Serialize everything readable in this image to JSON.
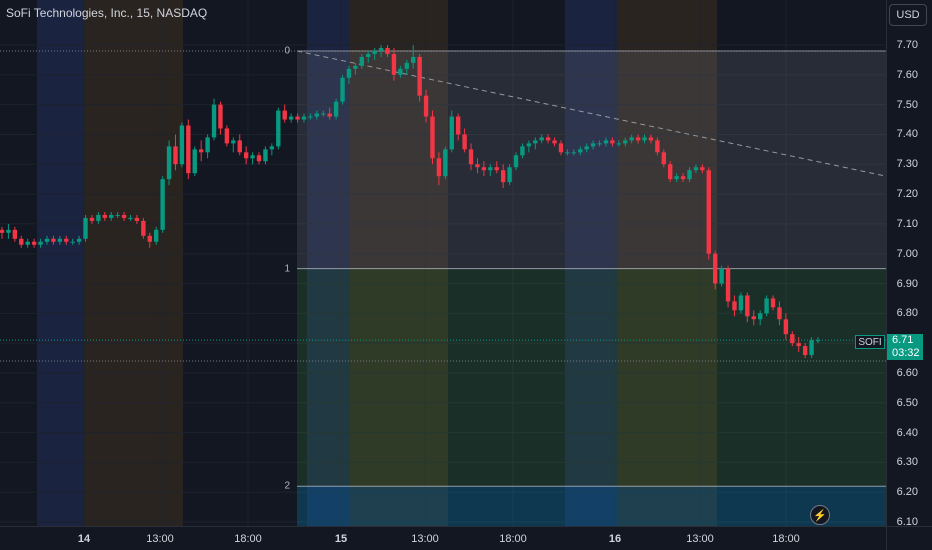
{
  "header": {
    "title": "SoFi Technologies, Inc., 15, NASDAQ",
    "currency": "USD"
  },
  "colors": {
    "background": "#131722",
    "up": "#089981",
    "down": "#f23645",
    "grid": "#1e222d",
    "session_blue": "#1a2340",
    "session_brown": "#2a2420"
  },
  "price_axis": {
    "labels": [
      "7.70",
      "7.60",
      "7.50",
      "7.40",
      "7.30",
      "7.20",
      "7.10",
      "7.00",
      "6.90",
      "6.80",
      "6.70",
      "6.60",
      "6.50",
      "6.40",
      "6.30",
      "6.20",
      "6.10"
    ],
    "last_price": "6.71",
    "countdown": "03:32",
    "symbol_tag": "SOFI"
  },
  "time_axis": {
    "labels": [
      {
        "text": "14",
        "day": true
      },
      {
        "text": "13:00",
        "day": false
      },
      {
        "text": "18:00",
        "day": false
      },
      {
        "text": "15",
        "day": true
      },
      {
        "text": "13:00",
        "day": false
      },
      {
        "text": "18:00",
        "day": false
      },
      {
        "text": "16",
        "day": true
      },
      {
        "text": "13:00",
        "day": false
      },
      {
        "text": "18:00",
        "day": false
      }
    ]
  },
  "fib": {
    "levels": [
      {
        "label": "0",
        "price": 7.68
      },
      {
        "label": "1",
        "price": 6.95
      },
      {
        "label": "2",
        "price": 6.22
      }
    ]
  },
  "chart_data": {
    "type": "candlestick",
    "interval": "15",
    "ylim": [
      6.08,
      7.72
    ],
    "candles": [
      {
        "o": 7.08,
        "h": 7.09,
        "l": 7.05,
        "c": 7.07
      },
      {
        "o": 7.07,
        "h": 7.1,
        "l": 7.05,
        "c": 7.08
      },
      {
        "o": 7.08,
        "h": 7.09,
        "l": 7.04,
        "c": 7.05
      },
      {
        "o": 7.05,
        "h": 7.06,
        "l": 7.02,
        "c": 7.03
      },
      {
        "o": 7.03,
        "h": 7.05,
        "l": 7.02,
        "c": 7.04
      },
      {
        "o": 7.04,
        "h": 7.05,
        "l": 7.02,
        "c": 7.03
      },
      {
        "o": 7.03,
        "h": 7.05,
        "l": 7.02,
        "c": 7.04
      },
      {
        "o": 7.04,
        "h": 7.06,
        "l": 7.03,
        "c": 7.05
      },
      {
        "o": 7.05,
        "h": 7.06,
        "l": 7.03,
        "c": 7.04
      },
      {
        "o": 7.04,
        "h": 7.06,
        "l": 7.03,
        "c": 7.05
      },
      {
        "o": 7.05,
        "h": 7.06,
        "l": 7.03,
        "c": 7.04
      },
      {
        "o": 7.04,
        "h": 7.05,
        "l": 7.03,
        "c": 7.04
      },
      {
        "o": 7.04,
        "h": 7.06,
        "l": 7.03,
        "c": 7.05
      },
      {
        "o": 7.05,
        "h": 7.13,
        "l": 7.04,
        "c": 7.12
      },
      {
        "o": 7.12,
        "h": 7.13,
        "l": 7.1,
        "c": 7.11
      },
      {
        "o": 7.11,
        "h": 7.14,
        "l": 7.1,
        "c": 7.13
      },
      {
        "o": 7.13,
        "h": 7.14,
        "l": 7.11,
        "c": 7.12
      },
      {
        "o": 7.12,
        "h": 7.14,
        "l": 7.11,
        "c": 7.13
      },
      {
        "o": 7.13,
        "h": 7.14,
        "l": 7.12,
        "c": 7.13
      },
      {
        "o": 7.13,
        "h": 7.14,
        "l": 7.11,
        "c": 7.12
      },
      {
        "o": 7.12,
        "h": 7.13,
        "l": 7.11,
        "c": 7.12
      },
      {
        "o": 7.12,
        "h": 7.13,
        "l": 7.1,
        "c": 7.11
      },
      {
        "o": 7.11,
        "h": 7.12,
        "l": 7.05,
        "c": 7.06
      },
      {
        "o": 7.06,
        "h": 7.07,
        "l": 7.02,
        "c": 7.04
      },
      {
        "o": 7.04,
        "h": 7.09,
        "l": 7.03,
        "c": 7.08
      },
      {
        "o": 7.08,
        "h": 7.26,
        "l": 7.07,
        "c": 7.25
      },
      {
        "o": 7.25,
        "h": 7.38,
        "l": 7.23,
        "c": 7.36
      },
      {
        "o": 7.36,
        "h": 7.4,
        "l": 7.28,
        "c": 7.3
      },
      {
        "o": 7.3,
        "h": 7.44,
        "l": 7.29,
        "c": 7.43
      },
      {
        "o": 7.43,
        "h": 7.45,
        "l": 7.25,
        "c": 7.27
      },
      {
        "o": 7.27,
        "h": 7.36,
        "l": 7.26,
        "c": 7.35
      },
      {
        "o": 7.35,
        "h": 7.38,
        "l": 7.31,
        "c": 7.34
      },
      {
        "o": 7.34,
        "h": 7.4,
        "l": 7.32,
        "c": 7.39
      },
      {
        "o": 7.39,
        "h": 7.52,
        "l": 7.38,
        "c": 7.5
      },
      {
        "o": 7.5,
        "h": 7.51,
        "l": 7.4,
        "c": 7.42
      },
      {
        "o": 7.42,
        "h": 7.43,
        "l": 7.36,
        "c": 7.37
      },
      {
        "o": 7.37,
        "h": 7.39,
        "l": 7.34,
        "c": 7.38
      },
      {
        "o": 7.38,
        "h": 7.4,
        "l": 7.33,
        "c": 7.34
      },
      {
        "o": 7.34,
        "h": 7.36,
        "l": 7.3,
        "c": 7.32
      },
      {
        "o": 7.32,
        "h": 7.34,
        "l": 7.3,
        "c": 7.33
      },
      {
        "o": 7.33,
        "h": 7.34,
        "l": 7.3,
        "c": 7.31
      },
      {
        "o": 7.31,
        "h": 7.36,
        "l": 7.3,
        "c": 7.35
      },
      {
        "o": 7.35,
        "h": 7.37,
        "l": 7.33,
        "c": 7.36
      },
      {
        "o": 7.36,
        "h": 7.49,
        "l": 7.35,
        "c": 7.48
      },
      {
        "o": 7.48,
        "h": 7.5,
        "l": 7.44,
        "c": 7.45
      },
      {
        "o": 7.45,
        "h": 7.47,
        "l": 7.44,
        "c": 7.46
      },
      {
        "o": 7.46,
        "h": 7.47,
        "l": 7.44,
        "c": 7.45
      },
      {
        "o": 7.45,
        "h": 7.47,
        "l": 7.44,
        "c": 7.46
      },
      {
        "o": 7.46,
        "h": 7.47,
        "l": 7.45,
        "c": 7.46
      },
      {
        "o": 7.46,
        "h": 7.48,
        "l": 7.45,
        "c": 7.47
      },
      {
        "o": 7.47,
        "h": 7.48,
        "l": 7.46,
        "c": 7.47
      },
      {
        "o": 7.47,
        "h": 7.49,
        "l": 7.45,
        "c": 7.46
      },
      {
        "o": 7.46,
        "h": 7.52,
        "l": 7.45,
        "c": 7.51
      },
      {
        "o": 7.51,
        "h": 7.6,
        "l": 7.5,
        "c": 7.59
      },
      {
        "o": 7.59,
        "h": 7.63,
        "l": 7.57,
        "c": 7.62
      },
      {
        "o": 7.62,
        "h": 7.64,
        "l": 7.6,
        "c": 7.63
      },
      {
        "o": 7.63,
        "h": 7.67,
        "l": 7.62,
        "c": 7.66
      },
      {
        "o": 7.66,
        "h": 7.68,
        "l": 7.64,
        "c": 7.67
      },
      {
        "o": 7.67,
        "h": 7.69,
        "l": 7.65,
        "c": 7.68
      },
      {
        "o": 7.68,
        "h": 7.7,
        "l": 7.66,
        "c": 7.69
      },
      {
        "o": 7.69,
        "h": 7.7,
        "l": 7.66,
        "c": 7.67
      },
      {
        "o": 7.67,
        "h": 7.69,
        "l": 7.58,
        "c": 7.6
      },
      {
        "o": 7.6,
        "h": 7.63,
        "l": 7.59,
        "c": 7.62
      },
      {
        "o": 7.62,
        "h": 7.65,
        "l": 7.6,
        "c": 7.64
      },
      {
        "o": 7.64,
        "h": 7.7,
        "l": 7.62,
        "c": 7.66
      },
      {
        "o": 7.66,
        "h": 7.67,
        "l": 7.51,
        "c": 7.53
      },
      {
        "o": 7.53,
        "h": 7.55,
        "l": 7.44,
        "c": 7.46
      },
      {
        "o": 7.46,
        "h": 7.48,
        "l": 7.3,
        "c": 7.32
      },
      {
        "o": 7.32,
        "h": 7.34,
        "l": 7.23,
        "c": 7.26
      },
      {
        "o": 7.26,
        "h": 7.36,
        "l": 7.25,
        "c": 7.35
      },
      {
        "o": 7.35,
        "h": 7.48,
        "l": 7.34,
        "c": 7.46
      },
      {
        "o": 7.46,
        "h": 7.47,
        "l": 7.38,
        "c": 7.4
      },
      {
        "o": 7.4,
        "h": 7.42,
        "l": 7.34,
        "c": 7.35
      },
      {
        "o": 7.35,
        "h": 7.37,
        "l": 7.28,
        "c": 7.3
      },
      {
        "o": 7.3,
        "h": 7.32,
        "l": 7.27,
        "c": 7.29
      },
      {
        "o": 7.29,
        "h": 7.31,
        "l": 7.26,
        "c": 7.28
      },
      {
        "o": 7.28,
        "h": 7.3,
        "l": 7.26,
        "c": 7.29
      },
      {
        "o": 7.29,
        "h": 7.31,
        "l": 7.27,
        "c": 7.28
      },
      {
        "o": 7.28,
        "h": 7.3,
        "l": 7.22,
        "c": 7.24
      },
      {
        "o": 7.24,
        "h": 7.3,
        "l": 7.23,
        "c": 7.29
      },
      {
        "o": 7.29,
        "h": 7.34,
        "l": 7.28,
        "c": 7.33
      },
      {
        "o": 7.33,
        "h": 7.37,
        "l": 7.32,
        "c": 7.36
      },
      {
        "o": 7.36,
        "h": 7.38,
        "l": 7.34,
        "c": 7.37
      },
      {
        "o": 7.37,
        "h": 7.39,
        "l": 7.35,
        "c": 7.38
      },
      {
        "o": 7.38,
        "h": 7.4,
        "l": 7.37,
        "c": 7.39
      },
      {
        "o": 7.39,
        "h": 7.4,
        "l": 7.37,
        "c": 7.38
      },
      {
        "o": 7.38,
        "h": 7.39,
        "l": 7.36,
        "c": 7.37
      },
      {
        "o": 7.37,
        "h": 7.38,
        "l": 7.33,
        "c": 7.34
      },
      {
        "o": 7.34,
        "h": 7.35,
        "l": 7.33,
        "c": 7.34
      },
      {
        "o": 7.34,
        "h": 7.35,
        "l": 7.33,
        "c": 7.34
      },
      {
        "o": 7.34,
        "h": 7.36,
        "l": 7.33,
        "c": 7.35
      },
      {
        "o": 7.35,
        "h": 7.37,
        "l": 7.34,
        "c": 7.36
      },
      {
        "o": 7.36,
        "h": 7.38,
        "l": 7.35,
        "c": 7.37
      },
      {
        "o": 7.37,
        "h": 7.38,
        "l": 7.36,
        "c": 7.37
      },
      {
        "o": 7.37,
        "h": 7.39,
        "l": 7.36,
        "c": 7.38
      },
      {
        "o": 7.38,
        "h": 7.39,
        "l": 7.36,
        "c": 7.37
      },
      {
        "o": 7.37,
        "h": 7.38,
        "l": 7.36,
        "c": 7.37
      },
      {
        "o": 7.37,
        "h": 7.39,
        "l": 7.36,
        "c": 7.38
      },
      {
        "o": 7.38,
        "h": 7.4,
        "l": 7.37,
        "c": 7.39
      },
      {
        "o": 7.39,
        "h": 7.4,
        "l": 7.37,
        "c": 7.38
      },
      {
        "o": 7.38,
        "h": 7.4,
        "l": 7.37,
        "c": 7.39
      },
      {
        "o": 7.39,
        "h": 7.4,
        "l": 7.37,
        "c": 7.38
      },
      {
        "o": 7.38,
        "h": 7.39,
        "l": 7.33,
        "c": 7.34
      },
      {
        "o": 7.34,
        "h": 7.35,
        "l": 7.29,
        "c": 7.3
      },
      {
        "o": 7.3,
        "h": 7.31,
        "l": 7.24,
        "c": 7.25
      },
      {
        "o": 7.25,
        "h": 7.27,
        "l": 7.24,
        "c": 7.26
      },
      {
        "o": 7.26,
        "h": 7.27,
        "l": 7.24,
        "c": 7.25
      },
      {
        "o": 7.25,
        "h": 7.29,
        "l": 7.24,
        "c": 7.28
      },
      {
        "o": 7.28,
        "h": 7.3,
        "l": 7.27,
        "c": 7.29
      },
      {
        "o": 7.29,
        "h": 7.3,
        "l": 7.27,
        "c": 7.28
      },
      {
        "o": 7.28,
        "h": 7.29,
        "l": 6.98,
        "c": 7.0
      },
      {
        "o": 7.0,
        "h": 7.01,
        "l": 6.88,
        "c": 6.9
      },
      {
        "o": 6.9,
        "h": 6.96,
        "l": 6.89,
        "c": 6.95
      },
      {
        "o": 6.95,
        "h": 6.96,
        "l": 6.82,
        "c": 6.84
      },
      {
        "o": 6.84,
        "h": 6.86,
        "l": 6.79,
        "c": 6.81
      },
      {
        "o": 6.81,
        "h": 6.87,
        "l": 6.8,
        "c": 6.86
      },
      {
        "o": 6.86,
        "h": 6.87,
        "l": 6.77,
        "c": 6.79
      },
      {
        "o": 6.79,
        "h": 6.81,
        "l": 6.76,
        "c": 6.78
      },
      {
        "o": 6.78,
        "h": 6.81,
        "l": 6.76,
        "c": 6.8
      },
      {
        "o": 6.8,
        "h": 6.86,
        "l": 6.79,
        "c": 6.85
      },
      {
        "o": 6.85,
        "h": 6.86,
        "l": 6.81,
        "c": 6.82
      },
      {
        "o": 6.82,
        "h": 6.84,
        "l": 6.76,
        "c": 6.78
      },
      {
        "o": 6.78,
        "h": 6.8,
        "l": 6.71,
        "c": 6.73
      },
      {
        "o": 6.73,
        "h": 6.74,
        "l": 6.69,
        "c": 6.7
      },
      {
        "o": 6.7,
        "h": 6.72,
        "l": 6.67,
        "c": 6.69
      },
      {
        "o": 6.69,
        "h": 6.7,
        "l": 6.65,
        "c": 6.66
      },
      {
        "o": 6.66,
        "h": 6.72,
        "l": 6.65,
        "c": 6.71
      },
      {
        "o": 6.71,
        "h": 6.72,
        "l": 6.7,
        "c": 6.71
      }
    ]
  }
}
